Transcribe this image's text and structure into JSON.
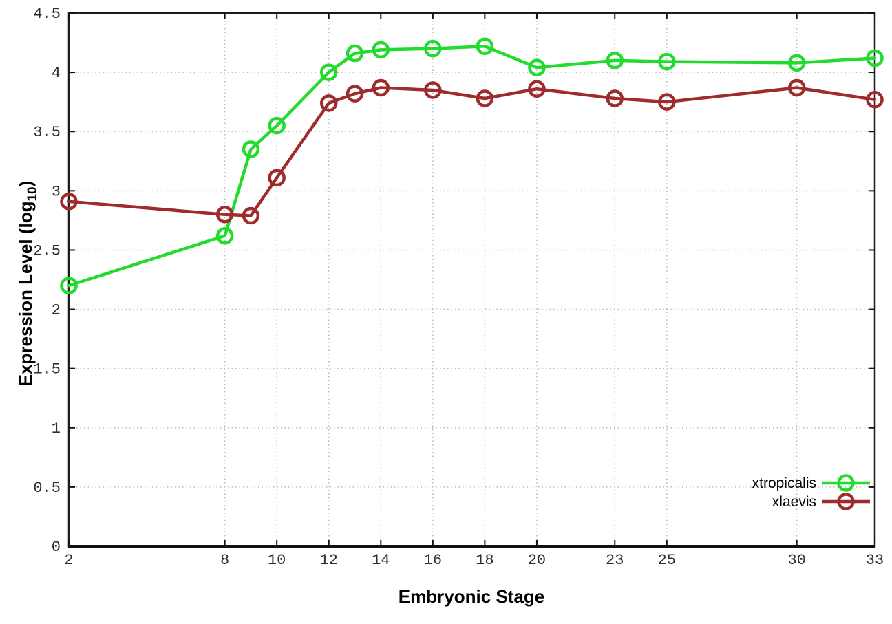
{
  "chart_data": {
    "type": "line",
    "title": "",
    "xlabel": "Embryonic Stage",
    "ylabel": "Expression Level (log10)",
    "ylabel_parts": {
      "main": "Expression Level (log",
      "sub": "10",
      "close": ")"
    },
    "x": [
      2,
      8,
      9,
      10,
      12,
      13,
      14,
      16,
      18,
      20,
      23,
      25,
      30,
      33
    ],
    "series": [
      {
        "name": "xtropicalis",
        "color": "#23DB2E",
        "marker": "open-circle",
        "values": [
          2.2,
          2.62,
          3.35,
          3.55,
          4.0,
          4.16,
          4.19,
          4.2,
          4.22,
          4.04,
          4.1,
          4.09,
          4.08,
          4.12
        ]
      },
      {
        "name": "xlaevis",
        "color": "#9E2C2C",
        "marker": "open-circle",
        "values": [
          2.91,
          2.8,
          2.79,
          3.11,
          3.74,
          3.82,
          3.87,
          3.85,
          3.78,
          3.86,
          3.78,
          3.75,
          3.87,
          3.77
        ]
      }
    ],
    "xlim": [
      2,
      33
    ],
    "ylim": [
      0,
      4.5
    ],
    "xticks": [
      2,
      8,
      10,
      12,
      14,
      16,
      18,
      20,
      23,
      25,
      30,
      33
    ],
    "xtick_labels": [
      "2",
      "8",
      "10",
      "12",
      "14",
      "16",
      "18",
      "20",
      "23",
      "25",
      "30",
      "33"
    ],
    "yticks": [
      0,
      0.5,
      1,
      1.5,
      2,
      2.5,
      3,
      3.5,
      4,
      4.5
    ],
    "ytick_labels": [
      "0",
      "0.5",
      "1",
      "1.5",
      "2",
      "2.5",
      "3",
      "3.5",
      "4",
      "4.5"
    ],
    "grid": true,
    "legend_position": "inside-bottom-right",
    "style": {
      "background": "#ffffff",
      "grid_color": "#bababa",
      "border_color": "#1c1c1c",
      "tick_label_color": "#2e2e2e"
    }
  }
}
